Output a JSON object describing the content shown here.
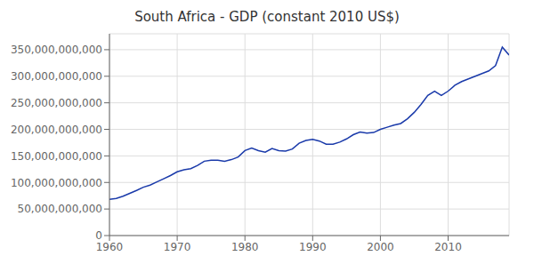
{
  "chart_data": {
    "type": "line",
    "title": "South Africa - GDP (constant 2010 US$)",
    "x": [
      1960,
      1961,
      1962,
      1963,
      1964,
      1965,
      1966,
      1967,
      1968,
      1969,
      1970,
      1971,
      1972,
      1973,
      1974,
      1975,
      1976,
      1977,
      1978,
      1979,
      1980,
      1981,
      1982,
      1983,
      1984,
      1985,
      1986,
      1987,
      1988,
      1989,
      1990,
      1991,
      1992,
      1993,
      1994,
      1995,
      1996,
      1997,
      1998,
      1999,
      2000,
      2001,
      2002,
      2003,
      2004,
      2005,
      2006,
      2007,
      2008,
      2009,
      2010,
      2011,
      2012,
      2013,
      2014,
      2015,
      2016,
      2017,
      2018,
      2019
    ],
    "values": [
      68000000000,
      70000000000,
      74000000000,
      79500000000,
      85000000000,
      91000000000,
      95000000000,
      101000000000,
      107000000000,
      113000000000,
      120000000000,
      124000000000,
      126000000000,
      132000000000,
      140000000000,
      142000000000,
      142000000000,
      140000000000,
      143000000000,
      148000000000,
      160000000000,
      165000000000,
      160000000000,
      157000000000,
      164000000000,
      160000000000,
      159000000000,
      163000000000,
      174000000000,
      179000000000,
      181000000000,
      178000000000,
      172000000000,
      172000000000,
      176000000000,
      182000000000,
      190000000000,
      195000000000,
      193000000000,
      194000000000,
      200000000000,
      204000000000,
      208000000000,
      211000000000,
      220000000000,
      232000000000,
      247000000000,
      264000000000,
      272000000000,
      264000000000,
      272000000000,
      283000000000,
      290000000000,
      295000000000,
      300000000000,
      305000000000,
      310000000000,
      320000000000,
      355000000000,
      340000000000
    ],
    "color": "#1a3aaa",
    "xlim": [
      1960,
      2019
    ],
    "ylim": [
      0,
      380000000000
    ],
    "xticks": [
      1960,
      1970,
      1980,
      1990,
      2000,
      2010
    ],
    "yticks": [
      0,
      {
        "value": 50000000000,
        "label": "50,000,000,000"
      },
      {
        "value": 100000000000,
        "label": "100,000,000,000"
      },
      {
        "value": 150000000000,
        "label": "150,000,000,000"
      },
      {
        "value": 200000000000,
        "label": "200,000,000,000"
      },
      {
        "value": 250000000000,
        "label": "250,000,000,000"
      },
      {
        "value": 300000000000,
        "label": "300,000,000,000"
      },
      {
        "value": 350000000000,
        "label": "350,000,000,000"
      }
    ],
    "grid": true
  }
}
